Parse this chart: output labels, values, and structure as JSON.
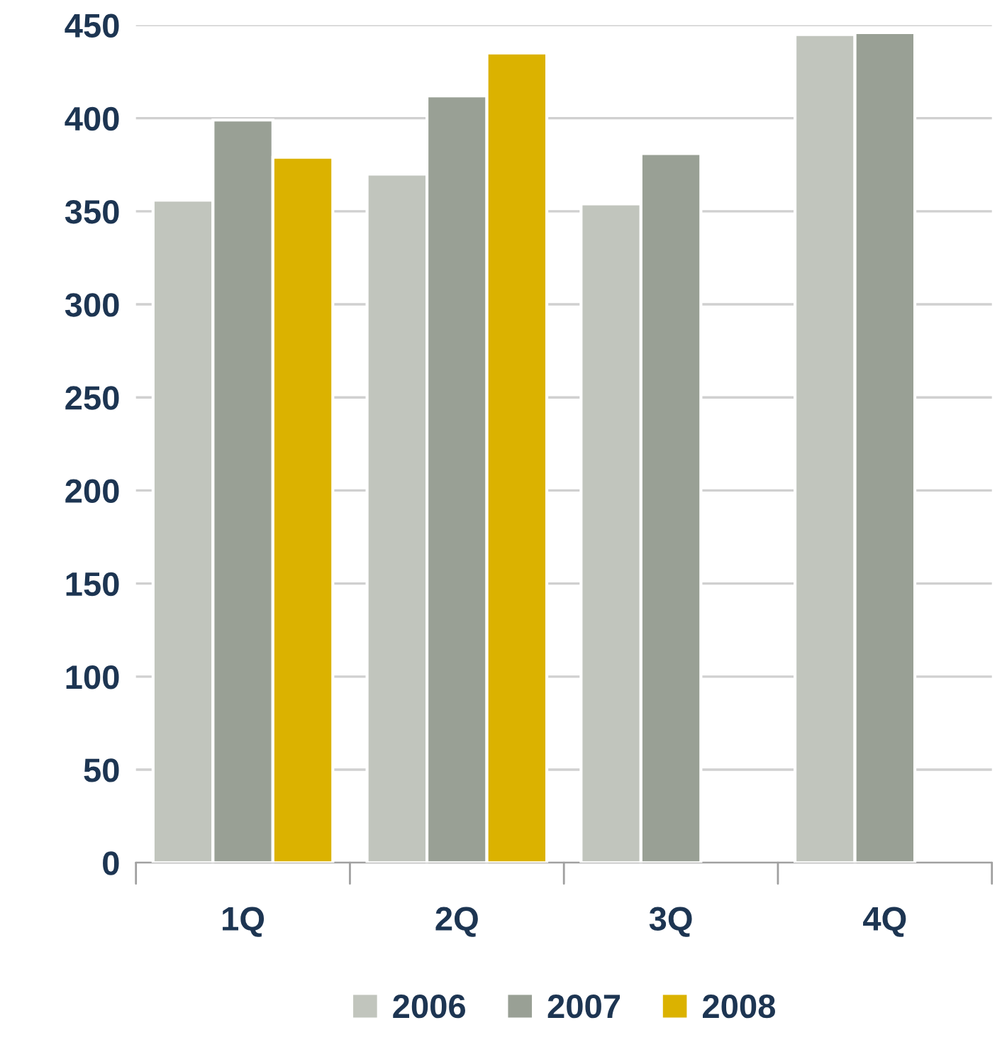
{
  "chart_data": {
    "type": "bar",
    "categories": [
      "1Q",
      "2Q",
      "3Q",
      "4Q"
    ],
    "series": [
      {
        "name": "2006",
        "color": "#c1c5bd",
        "values": [
          356,
          370,
          354,
          445
        ]
      },
      {
        "name": "2007",
        "color": "#99a095",
        "values": [
          399,
          412,
          381,
          446
        ]
      },
      {
        "name": "2008",
        "color": "#dbb200",
        "values": [
          379,
          435,
          null,
          null
        ]
      }
    ],
    "ylim": [
      0,
      450
    ],
    "yticks": [
      0,
      50,
      100,
      150,
      200,
      250,
      300,
      350,
      400,
      450
    ],
    "grid": "y",
    "legend": "bottom"
  }
}
